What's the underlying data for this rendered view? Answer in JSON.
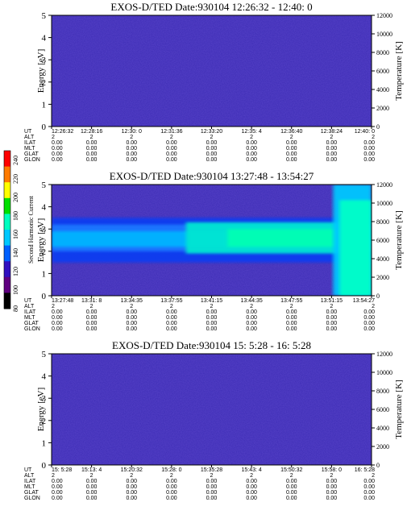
{
  "colorbar": {
    "label": "Second Harmonic Current",
    "ticks": [
      "240",
      "220",
      "200",
      "180",
      "160",
      "140",
      "120",
      "100",
      "80"
    ],
    "colors": [
      "#ff0000",
      "#ff7a00",
      "#ffff00",
      "#00e000",
      "#00ffc0",
      "#00c8ff",
      "#0060ff",
      "#3010c0",
      "#600080",
      "#000000"
    ]
  },
  "chart_data": [
    {
      "type": "heatmap",
      "title": "EXOS-D/TED   Date:930104   12:26:32 - 12:40: 0",
      "ylabel": "Energy [eV]",
      "y2label": "Temperature [K]",
      "ylim": [
        0,
        5
      ],
      "y2lim": [
        0,
        12000
      ],
      "yticks": [
        "0",
        "1",
        "2",
        "3",
        "4",
        "5"
      ],
      "y2ticks": [
        "0",
        "2000",
        "4000",
        "6000",
        "8000",
        "10000",
        "12000"
      ],
      "background": "#3c2cb4",
      "table": {
        "rows": [
          "UT",
          "ALT",
          "ILAT",
          "MLT",
          "GLAT",
          "GLON"
        ],
        "columns": [
          {
            "UT": "12:26:32",
            "ALT": "2",
            "ILAT": "0.00",
            "MLT": "0.00",
            "GLAT": "0.00",
            "GLON": "0.00"
          },
          {
            "UT": "12:28:16",
            "ALT": "2",
            "ILAT": "0.00",
            "MLT": "0.00",
            "GLAT": "0.00",
            "GLON": "0.00"
          },
          {
            "UT": "12:30: 0",
            "ALT": "2",
            "ILAT": "0.00",
            "MLT": "0.00",
            "GLAT": "0.00",
            "GLON": "0.00"
          },
          {
            "UT": "12:31:36",
            "ALT": "2",
            "ILAT": "0.00",
            "MLT": "0.00",
            "GLAT": "0.00",
            "GLON": "0.00"
          },
          {
            "UT": "12:33:20",
            "ALT": "2",
            "ILAT": "0.00",
            "MLT": "0.00",
            "GLAT": "0.00",
            "GLON": "0.00"
          },
          {
            "UT": "12:35: 4",
            "ALT": "2",
            "ILAT": "0.00",
            "MLT": "0.00",
            "GLAT": "0.00",
            "GLON": "0.00"
          },
          {
            "UT": "12:36:40",
            "ALT": "2",
            "ILAT": "0.00",
            "MLT": "0.00",
            "GLAT": "0.00",
            "GLON": "0.00"
          },
          {
            "UT": "12:38:24",
            "ALT": "2",
            "ILAT": "0.00",
            "MLT": "0.00",
            "GLAT": "0.00",
            "GLON": "0.00"
          },
          {
            "UT": "12:40: 0",
            "ALT": "2",
            "ILAT": "0.00",
            "MLT": "0.00",
            "GLAT": "0.00",
            "GLON": "0.00"
          }
        ]
      },
      "bands": []
    },
    {
      "type": "heatmap",
      "title": "EXOS-D/TED   Date:930104   13:27:48 - 13:54:27",
      "ylabel": "Energy [eV]",
      "y2label": "Temperature [K]",
      "ylim": [
        0,
        5
      ],
      "y2lim": [
        0,
        12000
      ],
      "yticks": [
        "0",
        "1",
        "2",
        "3",
        "4",
        "5"
      ],
      "y2ticks": [
        "0",
        "2000",
        "4000",
        "6000",
        "8000",
        "10000",
        "12000"
      ],
      "background": "#3c2cb4",
      "table": {
        "rows": [
          "UT",
          "ALT",
          "ILAT",
          "MLT",
          "GLAT",
          "GLON"
        ],
        "columns": [
          {
            "UT": "13:27:48",
            "ALT": "2",
            "ILAT": "0.00",
            "MLT": "0.00",
            "GLAT": "0.00",
            "GLON": "0.00"
          },
          {
            "UT": "13:31: 8",
            "ALT": "2",
            "ILAT": "0.00",
            "MLT": "0.00",
            "GLAT": "0.00",
            "GLON": "0.00"
          },
          {
            "UT": "13:34:35",
            "ALT": "2",
            "ILAT": "0.00",
            "MLT": "0.00",
            "GLAT": "0.00",
            "GLON": "0.00"
          },
          {
            "UT": "13:37:55",
            "ALT": "2",
            "ILAT": "0.00",
            "MLT": "0.00",
            "GLAT": "0.00",
            "GLON": "0.00"
          },
          {
            "UT": "13:41:15",
            "ALT": "2",
            "ILAT": "0.00",
            "MLT": "0.00",
            "GLAT": "0.00",
            "GLON": "0.00"
          },
          {
            "UT": "13:44:35",
            "ALT": "2",
            "ILAT": "0.00",
            "MLT": "0.00",
            "GLAT": "0.00",
            "GLON": "0.00"
          },
          {
            "UT": "13:47:55",
            "ALT": "2",
            "ILAT": "0.00",
            "MLT": "0.00",
            "GLAT": "0.00",
            "GLON": "0.00"
          },
          {
            "UT": "13:51:15",
            "ALT": "2",
            "ILAT": "0.00",
            "MLT": "0.00",
            "GLAT": "0.00",
            "GLON": "0.00"
          },
          {
            "UT": "13:54:27",
            "ALT": "2",
            "ILAT": "0.00",
            "MLT": "0.00",
            "GLAT": "0.00",
            "GLON": "0.00"
          }
        ]
      },
      "bands": [
        {
          "color": "#0a3cf0",
          "e0": 1.5,
          "e1": 3.5,
          "t0": 0,
          "t1": 1
        },
        {
          "color": "#1e78ff",
          "e0": 2.0,
          "e1": 3.2,
          "t0": 0,
          "t1": 1
        },
        {
          "color": "#00b4ff",
          "e0": 2.2,
          "e1": 2.9,
          "t0": 0,
          "t1": 0.62
        },
        {
          "color": "#00e6d2",
          "e0": 1.9,
          "e1": 3.3,
          "t0": 0.42,
          "t1": 0.9
        },
        {
          "color": "#00ffb4",
          "e0": 2.2,
          "e1": 3.0,
          "t0": 0.55,
          "t1": 0.9
        },
        {
          "color": "#00c8ff",
          "e0": 0,
          "e1": 5,
          "t0": 0.88,
          "t1": 1
        },
        {
          "color": "#00ffc8",
          "e0": 0,
          "e1": 4.3,
          "t0": 0.9,
          "t1": 1
        }
      ]
    },
    {
      "type": "heatmap",
      "title": "EXOS-D/TED   Date:930104   15: 5:28 - 16: 5:28",
      "ylabel": "Energy [eV]",
      "y2label": "Temperature [K]",
      "ylim": [
        0,
        5
      ],
      "y2lim": [
        0,
        12000
      ],
      "yticks": [
        "0",
        "1",
        "2",
        "3",
        "4",
        "5"
      ],
      "y2ticks": [
        "0",
        "2000",
        "4000",
        "6000",
        "8000",
        "10000",
        "12000"
      ],
      "background": "#3c2cb4",
      "table": {
        "rows": [
          "UT",
          "ALT",
          "ILAT",
          "MLT",
          "GLAT",
          "GLON"
        ],
        "columns": [
          {
            "UT": "15: 5:28",
            "ALT": "2",
            "ILAT": "0.00",
            "MLT": "0.00",
            "GLAT": "0.00",
            "GLON": "0.00"
          },
          {
            "UT": "15:13: 4",
            "ALT": "2",
            "ILAT": "0.00",
            "MLT": "0.00",
            "GLAT": "0.00",
            "GLON": "0.00"
          },
          {
            "UT": "15:20:32",
            "ALT": "2",
            "ILAT": "0.00",
            "MLT": "0.00",
            "GLAT": "0.00",
            "GLON": "0.00"
          },
          {
            "UT": "15:28: 0",
            "ALT": "2",
            "ILAT": "0.00",
            "MLT": "0.00",
            "GLAT": "0.00",
            "GLON": "0.00"
          },
          {
            "UT": "15:35:28",
            "ALT": "2",
            "ILAT": "0.00",
            "MLT": "0.00",
            "GLAT": "0.00",
            "GLON": "0.00"
          },
          {
            "UT": "15:43: 4",
            "ALT": "2",
            "ILAT": "0.00",
            "MLT": "0.00",
            "GLAT": "0.00",
            "GLON": "0.00"
          },
          {
            "UT": "15:50:32",
            "ALT": "2",
            "ILAT": "0.00",
            "MLT": "0.00",
            "GLAT": "0.00",
            "GLON": "0.00"
          },
          {
            "UT": "15:58: 0",
            "ALT": "2",
            "ILAT": "0.00",
            "MLT": "0.00",
            "GLAT": "0.00",
            "GLON": "0.00"
          },
          {
            "UT": "16: 5:28",
            "ALT": "2",
            "ILAT": "0.00",
            "MLT": "0.00",
            "GLAT": "0.00",
            "GLON": "0.00"
          }
        ]
      },
      "bands": []
    }
  ]
}
